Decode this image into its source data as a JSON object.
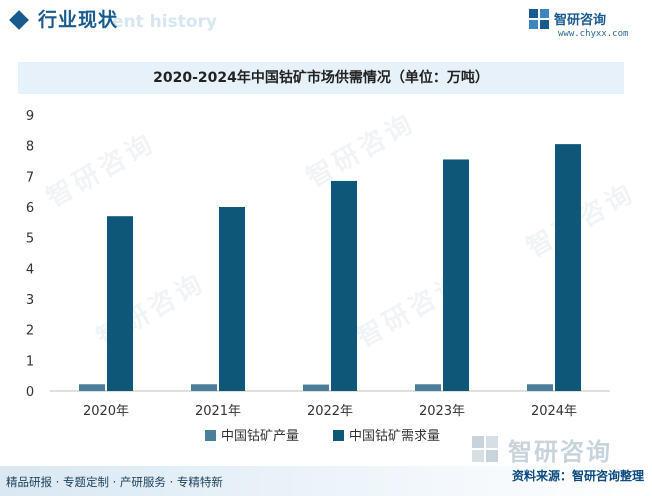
{
  "header": {
    "section_title": "行业现状",
    "ghost_text": "ent history",
    "brand_name": "智研咨询",
    "brand_url": "www.chyxx.com"
  },
  "chart_data": {
    "type": "bar",
    "title": "2020-2024年中国钴矿市场供需情况（单位：万吨）",
    "categories": [
      "2020年",
      "2021年",
      "2022年",
      "2023年",
      "2024年"
    ],
    "series": [
      {
        "name": "中国钴矿产量",
        "values": [
          0.22,
          0.22,
          0.21,
          0.22,
          0.22
        ],
        "color": "#4a7f99"
      },
      {
        "name": "中国钴矿需求量",
        "values": [
          5.7,
          6.0,
          6.85,
          7.55,
          8.05
        ],
        "color": "#0e5779"
      }
    ],
    "ylim": [
      0,
      9
    ],
    "yticks": [
      "0",
      "1",
      "2",
      "3",
      "4",
      "5",
      "6",
      "7",
      "8",
      "9"
    ],
    "grid": false,
    "legend": "bottom-center"
  },
  "watermark": {
    "text": "智研咨询"
  },
  "footer": {
    "links": "精品研报 · 专题定制 · 产研服务 · 专精特新",
    "source": "资料来源：智研咨询整理",
    "logo_text": "智研咨询"
  },
  "colors": {
    "accent": "#1a5b8f",
    "production": "#4a7f99",
    "demand": "#0e5779"
  }
}
